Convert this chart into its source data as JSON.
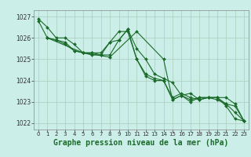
{
  "title": "Graphe pression niveau de la mer (hPa)",
  "background_color": "#cceee8",
  "grid_color": "#aaccbb",
  "line_color": "#1a6b2a",
  "marker_color": "#1a6b2a",
  "xlim": [
    -0.5,
    23.5
  ],
  "ylim": [
    1021.7,
    1027.3
  ],
  "yticks": [
    1022,
    1023,
    1024,
    1025,
    1026,
    1027
  ],
  "xticks": [
    0,
    1,
    2,
    3,
    4,
    5,
    6,
    7,
    8,
    9,
    10,
    11,
    12,
    13,
    14,
    15,
    16,
    17,
    18,
    19,
    20,
    21,
    22,
    23
  ],
  "series": [
    {
      "x": [
        0,
        1,
        2,
        3,
        4,
        5,
        6,
        7,
        8,
        9,
        10,
        11,
        12,
        13,
        14,
        15,
        16,
        17,
        18,
        19,
        20,
        21,
        22,
        23
      ],
      "y": [
        1026.9,
        1026.5,
        1026.0,
        1026.0,
        1025.7,
        1025.3,
        1025.3,
        1025.3,
        1025.8,
        1026.3,
        1026.3,
        1025.0,
        1024.3,
        1024.1,
        1024.0,
        1023.1,
        1023.3,
        1023.1,
        1023.2,
        1023.2,
        1023.2,
        1022.8,
        1022.2,
        1022.1
      ]
    },
    {
      "x": [
        0,
        1,
        2,
        3,
        4,
        5,
        6,
        7,
        8,
        9,
        10,
        11,
        12,
        13,
        14,
        15,
        16,
        17,
        18,
        19,
        20,
        21,
        22,
        23
      ],
      "y": [
        1026.8,
        1026.0,
        1025.9,
        1025.8,
        1025.4,
        1025.3,
        1025.3,
        1025.2,
        1025.8,
        1025.9,
        1026.4,
        1025.0,
        1024.2,
        1024.0,
        1024.0,
        1023.2,
        1023.4,
        1023.2,
        1023.1,
        1023.2,
        1023.2,
        1022.9,
        1022.5,
        1022.1
      ]
    },
    {
      "x": [
        1,
        2,
        3,
        4,
        5,
        6,
        7,
        8,
        9,
        10,
        11,
        12,
        13,
        14,
        15,
        16,
        17,
        18,
        19,
        20,
        21,
        22,
        23
      ],
      "y": [
        1026.0,
        1025.9,
        1025.7,
        1025.4,
        1025.3,
        1025.2,
        1025.2,
        1025.2,
        1025.9,
        1026.4,
        1025.5,
        1025.0,
        1024.3,
        1024.1,
        1023.9,
        1023.3,
        1023.4,
        1023.1,
        1023.2,
        1023.2,
        1023.2,
        1022.9,
        1022.1
      ]
    },
    {
      "x": [
        1,
        5,
        8,
        11,
        14,
        15,
        16,
        17,
        18,
        19,
        20,
        21,
        22,
        23
      ],
      "y": [
        1026.0,
        1025.3,
        1025.1,
        1026.3,
        1025.0,
        1023.1,
        1023.3,
        1023.0,
        1023.2,
        1023.2,
        1023.1,
        1022.9,
        1022.8,
        1022.1
      ]
    }
  ],
  "ylabel_fontsize": 5.5,
  "xlabel_fontsize": 5.5,
  "title_fontsize": 7.0,
  "linewidth": 0.8,
  "markersize": 2.0
}
